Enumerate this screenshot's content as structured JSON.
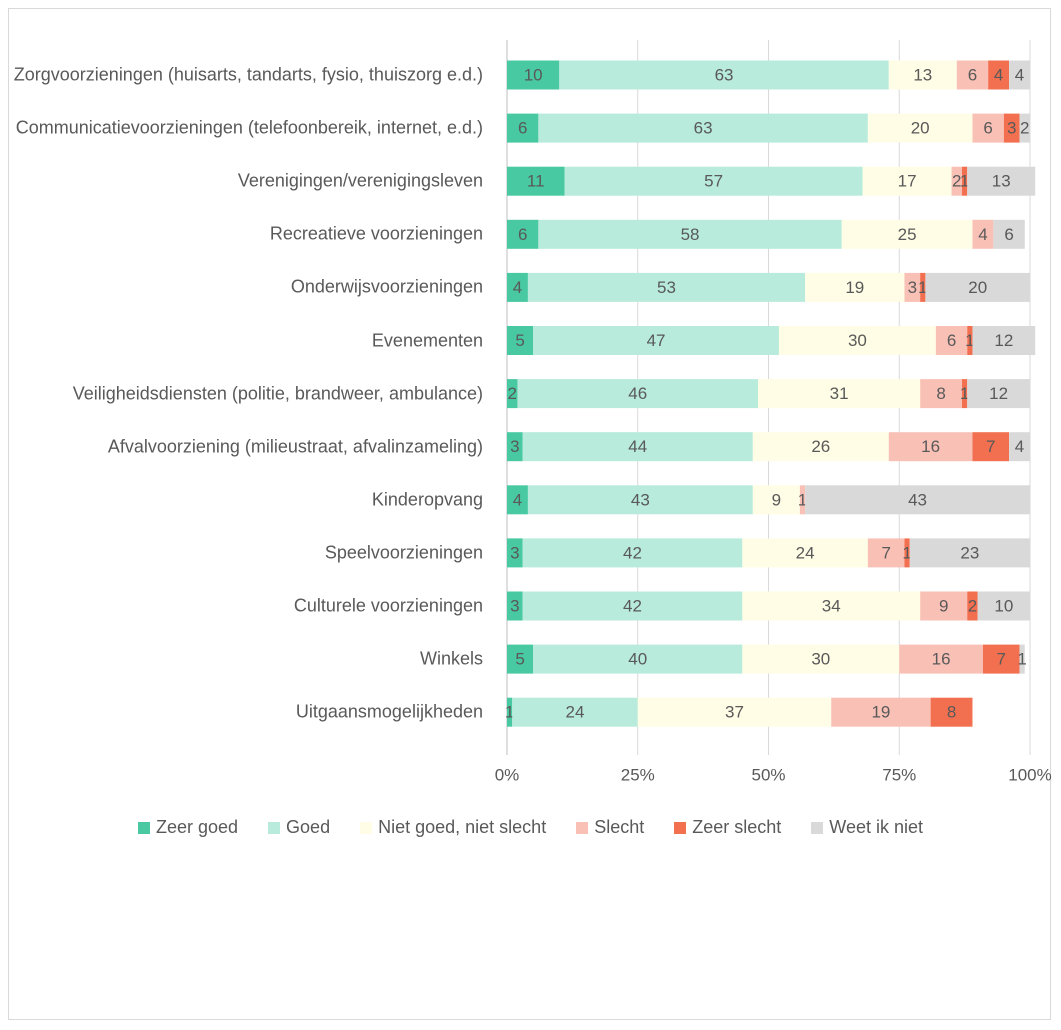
{
  "chart_data": {
    "type": "bar",
    "orientation": "horizontal",
    "stacked": true,
    "categories": [
      "Zorgvoorzieningen (huisarts, tandarts, fysio, thuiszorg e.d.)",
      "Communicatievoorzieningen (telefoonbereik, internet, e.d.)",
      "Verenigingen/verenigingsleven",
      "Recreatieve voorzieningen",
      "Onderwijsvoorzieningen",
      "Evenementen",
      "Veiligheidsdiensten (politie, brandweer, ambulance)",
      "Afvalvoorziening (milieustraat, afvalinzameling)",
      "Kinderopvang",
      "Speelvoorzieningen",
      "Culturele voorzieningen",
      "Winkels",
      "Uitgaansmogelijkheden"
    ],
    "series": [
      {
        "name": "Zeer goed",
        "color": "#48c9a1",
        "values": [
          10,
          6,
          11,
          6,
          4,
          5,
          2,
          3,
          4,
          3,
          3,
          5,
          1
        ]
      },
      {
        "name": "Goed",
        "color": "#b8ebdc",
        "values": [
          63,
          63,
          57,
          58,
          53,
          47,
          46,
          44,
          43,
          42,
          42,
          40,
          24
        ]
      },
      {
        "name": "Niet goed, niet slecht",
        "color": "#fffde5",
        "values": [
          13,
          20,
          17,
          25,
          19,
          30,
          31,
          26,
          9,
          24,
          34,
          30,
          37
        ]
      },
      {
        "name": "Slecht",
        "color": "#f9c1b6",
        "values": [
          6,
          6,
          2,
          4,
          3,
          6,
          8,
          16,
          1,
          7,
          9,
          16,
          19
        ]
      },
      {
        "name": "Zeer slecht",
        "color": "#f2704f",
        "values": [
          4,
          3,
          1,
          null,
          1,
          1,
          1,
          7,
          null,
          1,
          2,
          7,
          8
        ]
      },
      {
        "name": "Weet ik niet",
        "color": "#d9d9d9",
        "values": [
          4,
          2,
          13,
          6,
          20,
          12,
          12,
          4,
          43,
          23,
          10,
          1,
          null
        ]
      }
    ],
    "xlim": [
      0,
      100
    ],
    "xticks": [
      {
        "value": 0,
        "label": "0%"
      },
      {
        "value": 25,
        "label": "25%"
      },
      {
        "value": 50,
        "label": "50%"
      },
      {
        "value": 75,
        "label": "75%"
      },
      {
        "value": 100,
        "label": "100%"
      }
    ],
    "grid": true,
    "legend": "bottom"
  }
}
